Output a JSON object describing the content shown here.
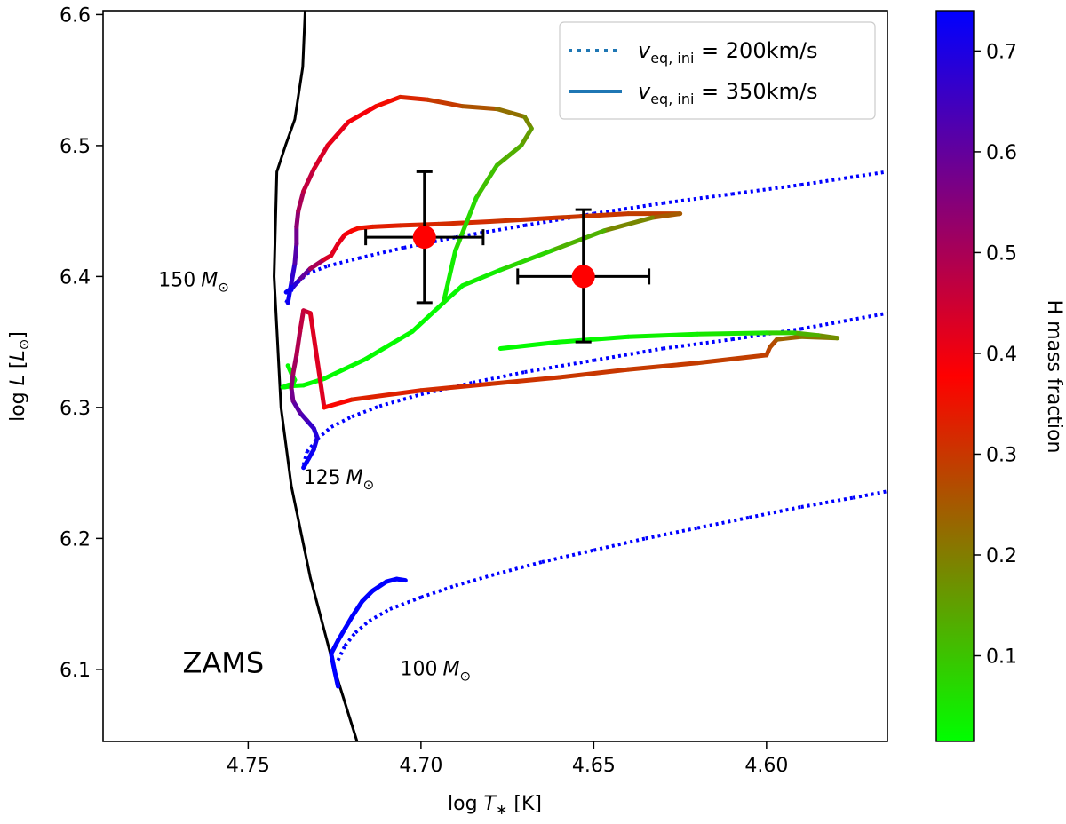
{
  "chart_data": {
    "type": "line",
    "xlabel_main": "log ",
    "xlabel_var": "T",
    "xlabel_sub": "∗",
    "xlabel_unit": " [K]",
    "ylabel_main": "log ",
    "ylabel_var": "L",
    "ylabel_unit_open": " [",
    "ylabel_unit_var": "L",
    "ylabel_unit_sub": "⊙",
    "ylabel_unit_close": "]",
    "xlim": [
      4.792,
      4.565
    ],
    "ylim": [
      6.045,
      6.603
    ],
    "x_ticks": [
      "4.75",
      "4.70",
      "4.65",
      "4.60"
    ],
    "x_tick_values": [
      4.75,
      4.7,
      4.65,
      4.6
    ],
    "y_ticks": [
      "6.1",
      "6.2",
      "6.3",
      "6.4",
      "6.5",
      "6.6"
    ],
    "y_tick_values": [
      6.1,
      6.2,
      6.3,
      6.4,
      6.5,
      6.6
    ],
    "colorbar": {
      "label": "H mass fraction",
      "range": [
        0.015,
        0.74
      ],
      "ticks": [
        "0.1",
        "0.2",
        "0.3",
        "0.4",
        "0.5",
        "0.6",
        "0.7"
      ],
      "tick_values": [
        0.1,
        0.2,
        0.3,
        0.4,
        0.5,
        0.6,
        0.7
      ],
      "colors": [
        "#00ff00",
        "#ff0000",
        "#0000ff"
      ]
    },
    "legend": {
      "position": "top-right",
      "entries": [
        {
          "style": "dotted",
          "label_var": "v",
          "label_sub": "eq, ini",
          "label_rest": " = 200km/s",
          "color": "#1f77b4"
        },
        {
          "style": "solid",
          "label_var": "v",
          "label_sub": "eq, ini",
          "label_rest": " = 350km/s",
          "color": "#1f77b4"
        }
      ]
    },
    "annotations": [
      {
        "text": "150",
        "unit": "M",
        "sub": "⊙",
        "x": 4.776,
        "y": 6.398
      },
      {
        "text": "125",
        "unit": "M",
        "sub": "⊙",
        "x": 4.734,
        "y": 6.247
      },
      {
        "text": "100",
        "unit": "M",
        "sub": "⊙",
        "x": 4.706,
        "y": 6.101
      },
      {
        "text": "ZAMS",
        "unit": "",
        "sub": "",
        "x": 4.769,
        "y": 6.103
      }
    ],
    "zams": {
      "name": "ZAMS",
      "x": [
        4.7335,
        4.7342,
        4.7365,
        4.7392,
        4.7417,
        4.7425,
        4.7405,
        4.7375,
        4.732,
        4.725,
        4.7185
      ],
      "y": [
        6.603,
        6.56,
        6.52,
        6.5,
        6.48,
        6.4,
        6.3,
        6.24,
        6.17,
        6.1,
        6.045
      ]
    },
    "series": [
      {
        "name": "200 km/s 150",
        "style": "dotted",
        "x": [
          4.739,
          4.737,
          4.733,
          4.727,
          4.718,
          4.705,
          4.69,
          4.67,
          4.65,
          4.63,
          4.61,
          4.59,
          4.565
        ],
        "y": [
          6.38,
          6.392,
          6.402,
          6.408,
          6.414,
          6.422,
          6.43,
          6.439,
          6.448,
          6.456,
          6.463,
          6.47,
          6.48
        ],
        "h": [
          0.74,
          0.74,
          0.74,
          0.74,
          0.74,
          0.74,
          0.74,
          0.74,
          0.74,
          0.74,
          0.74,
          0.74,
          0.74
        ]
      },
      {
        "name": "200 km/s 125",
        "style": "dotted",
        "x": [
          4.734,
          4.733,
          4.73,
          4.726,
          4.72,
          4.712,
          4.7,
          4.685,
          4.67,
          4.65,
          4.63,
          4.61,
          4.59,
          4.565
        ],
        "y": [
          6.256,
          6.266,
          6.276,
          6.285,
          6.293,
          6.301,
          6.31,
          6.319,
          6.327,
          6.336,
          6.345,
          6.352,
          6.36,
          6.372
        ],
        "h": [
          0.74,
          0.74,
          0.74,
          0.74,
          0.74,
          0.74,
          0.74,
          0.74,
          0.74,
          0.74,
          0.74,
          0.74,
          0.74,
          0.74
        ]
      },
      {
        "name": "200 km/s 100",
        "style": "dotted",
        "x": [
          4.724,
          4.722,
          4.719,
          4.715,
          4.709,
          4.7,
          4.69,
          4.678,
          4.665,
          4.65,
          4.635,
          4.62,
          4.605,
          4.59,
          4.575,
          4.565
        ],
        "y": [
          6.107,
          6.118,
          6.128,
          6.137,
          6.146,
          6.155,
          6.164,
          6.173,
          6.182,
          6.191,
          6.2,
          6.208,
          6.216,
          6.224,
          6.231,
          6.236
        ],
        "h": [
          0.74,
          0.74,
          0.74,
          0.74,
          0.74,
          0.74,
          0.74,
          0.74,
          0.74,
          0.74,
          0.74,
          0.74,
          0.74,
          0.74,
          0.74,
          0.74
        ]
      },
      {
        "name": "350 km/s 150",
        "style": "solid",
        "x": [
          4.739,
          4.737,
          4.735,
          4.732,
          4.728,
          4.726,
          4.724,
          4.722,
          4.72,
          4.718,
          4.714,
          4.706,
          4.695,
          4.68,
          4.66,
          4.64,
          4.625,
          4.633,
          4.647,
          4.662,
          4.677,
          4.688,
          4.6935,
          4.7025,
          4.716,
          4.728,
          4.734,
          4.737,
          4.7385,
          4.7395,
          4.74,
          4.7385,
          4.737,
          4.7365,
          4.7375,
          4.7385
        ],
        "y": [
          6.388,
          6.392,
          6.398,
          6.406,
          6.413,
          6.416,
          6.425,
          6.432,
          6.435,
          6.437,
          6.438,
          6.439,
          6.44,
          6.442,
          6.445,
          6.448,
          6.448,
          6.445,
          6.435,
          6.42,
          6.405,
          6.393,
          6.38,
          6.358,
          6.337,
          6.322,
          6.317,
          6.3165,
          6.316,
          6.3155,
          6.3155,
          6.317,
          6.318,
          6.321,
          6.326,
          6.332
        ],
        "h": [
          0.74,
          0.72,
          0.65,
          0.55,
          0.45,
          0.42,
          0.42,
          0.4,
          0.38,
          0.36,
          0.34,
          0.33,
          0.32,
          0.31,
          0.3,
          0.3,
          0.28,
          0.22,
          0.15,
          0.1,
          0.05,
          0.03,
          0.02,
          0.02,
          0.02,
          0.02,
          0.02,
          0.02,
          0.02,
          0.02,
          0.02,
          0.02,
          0.02,
          0.02,
          0.02,
          0.02
        ]
      },
      {
        "name": "350 km/s 150 upper",
        "style": "solid",
        "x": [
          4.7385,
          4.7375,
          4.7365,
          4.736,
          4.736,
          4.7355,
          4.734,
          4.731,
          4.727,
          4.721,
          4.713,
          4.706,
          4.698,
          4.688,
          4.678,
          4.67,
          4.668,
          4.671,
          4.678,
          4.684,
          4.69,
          4.6935
        ],
        "y": [
          6.38,
          6.395,
          6.41,
          6.425,
          6.438,
          6.45,
          6.465,
          6.482,
          6.5,
          6.518,
          6.53,
          6.537,
          6.535,
          6.53,
          6.528,
          6.522,
          6.513,
          6.5,
          6.485,
          6.46,
          6.42,
          6.38
        ],
        "h": [
          0.74,
          0.7,
          0.64,
          0.6,
          0.56,
          0.52,
          0.48,
          0.45,
          0.42,
          0.4,
          0.38,
          0.34,
          0.31,
          0.28,
          0.24,
          0.2,
          0.17,
          0.14,
          0.12,
          0.09,
          0.05,
          0.03
        ]
      },
      {
        "name": "350 km/s 125",
        "style": "solid",
        "x": [
          4.734,
          4.7325,
          4.731,
          4.73,
          4.731,
          4.733,
          4.735,
          4.737,
          4.7375,
          4.737,
          4.736,
          4.735,
          4.734,
          4.732,
          4.728,
          4.72,
          4.7,
          4.68,
          4.66,
          4.64,
          4.62,
          4.6,
          4.599,
          4.597,
          4.59,
          4.5795
        ],
        "y": [
          6.254,
          6.261,
          6.268,
          6.277,
          6.284,
          6.29,
          6.296,
          6.305,
          6.315,
          6.326,
          6.34,
          6.358,
          6.374,
          6.372,
          6.3,
          6.306,
          6.313,
          6.318,
          6.323,
          6.329,
          6.334,
          6.34,
          6.346,
          6.352,
          6.354,
          6.353
        ],
        "h": [
          0.74,
          0.73,
          0.72,
          0.7,
          0.68,
          0.65,
          0.62,
          0.6,
          0.56,
          0.52,
          0.5,
          0.48,
          0.46,
          0.45,
          0.4,
          0.34,
          0.32,
          0.31,
          0.3,
          0.3,
          0.29,
          0.29,
          0.28,
          0.26,
          0.22,
          0.2
        ]
      },
      {
        "name": "350 km/s 125 tail",
        "style": "solid",
        "x": [
          4.5795,
          4.585,
          4.592,
          4.6,
          4.62,
          4.64,
          4.66,
          4.677
        ],
        "y": [
          6.353,
          6.355,
          6.357,
          6.357,
          6.356,
          6.354,
          6.35,
          6.345
        ],
        "h": [
          0.2,
          0.15,
          0.1,
          0.06,
          0.04,
          0.03,
          0.02,
          0.02
        ]
      },
      {
        "name": "350 km/s 100",
        "style": "solid",
        "x": [
          4.724,
          4.725,
          4.726,
          4.724,
          4.722,
          4.72,
          4.717,
          4.714,
          4.71,
          4.707,
          4.7045
        ],
        "y": [
          6.087,
          6.099,
          6.112,
          6.122,
          6.131,
          6.14,
          6.152,
          6.16,
          6.167,
          6.169,
          6.168
        ],
        "h": [
          0.74,
          0.74,
          0.74,
          0.74,
          0.74,
          0.74,
          0.74,
          0.74,
          0.74,
          0.74,
          0.74
        ]
      }
    ],
    "points": [
      {
        "x": 4.699,
        "y": 6.43,
        "xerr": 0.017,
        "yerr_up": 0.05,
        "yerr_down": 0.05
      },
      {
        "x": 4.653,
        "y": 6.4,
        "xerr": 0.019,
        "yerr_up": 0.051,
        "yerr_down": 0.05
      }
    ]
  }
}
